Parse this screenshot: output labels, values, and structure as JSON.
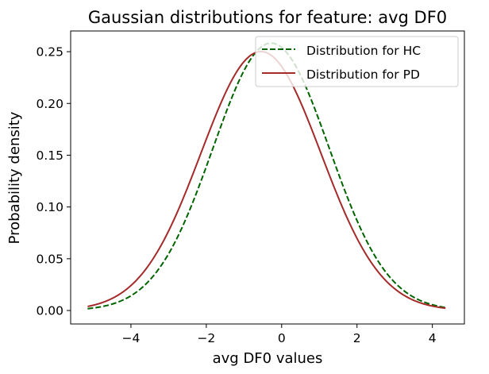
{
  "chart_data": {
    "type": "line",
    "title": "Gaussian distributions for feature: avg DF0",
    "xlabel": "avg DF0 values",
    "ylabel": "Probability density",
    "xlim": [
      -5.6,
      4.85
    ],
    "ylim": [
      -0.013,
      0.27
    ],
    "xticks": [
      -4,
      -2,
      0,
      2,
      4
    ],
    "xtick_labels": [
      "−4",
      "−2",
      "0",
      "2",
      "4"
    ],
    "yticks": [
      0.0,
      0.05,
      0.1,
      0.15,
      0.2,
      0.25
    ],
    "ytick_labels": [
      "0.00",
      "0.05",
      "0.10",
      "0.15",
      "0.20",
      "0.25"
    ],
    "x_range": [
      -5.15,
      4.35
    ],
    "grid": false,
    "legend_position": "upper-right",
    "series": [
      {
        "name": "Distribution for HC",
        "distribution": "gaussian",
        "mean": -0.28,
        "std": 1.545,
        "color": "#006400",
        "line_style": "dashed"
      },
      {
        "name": "Distribution for PD",
        "distribution": "gaussian",
        "mean": -0.55,
        "std": 1.595,
        "color": "#a52a2a",
        "line_style": "solid"
      }
    ]
  }
}
